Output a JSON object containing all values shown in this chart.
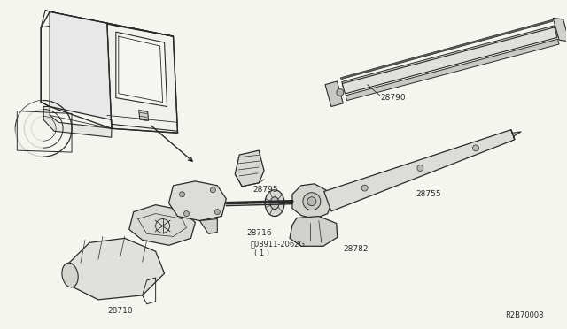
{
  "bg_color": "#f5f5f0",
  "line_color": "#2a2a2a",
  "fig_width": 6.4,
  "fig_height": 3.72,
  "dpi": 100,
  "diagram_id": "R2B70008",
  "label_28710": "28710",
  "label_28716": "28716",
  "label_28795": "28795",
  "label_28755": "28755",
  "label_28782": "28782",
  "label_28790": "28790",
  "label_nut": "N",
  "label_nut_part": "08911-2062G",
  "label_nut_qty": "( 1 )",
  "font_size": 6.5,
  "title_font_size": 7.0
}
